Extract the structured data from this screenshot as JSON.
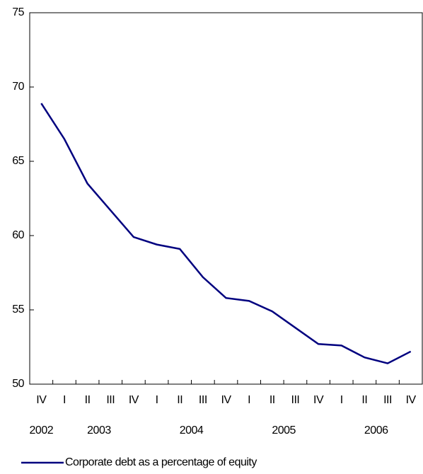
{
  "chart_data": {
    "type": "line",
    "categories": [
      "IV",
      "I",
      "II",
      "III",
      "IV",
      "I",
      "II",
      "III",
      "IV",
      "I",
      "II",
      "III",
      "IV",
      "I",
      "II",
      "III",
      "IV"
    ],
    "year_groups": [
      {
        "label": "2002",
        "start": 0,
        "end": 0
      },
      {
        "label": "2003",
        "start": 1,
        "end": 4
      },
      {
        "label": "2004",
        "start": 5,
        "end": 8
      },
      {
        "label": "2005",
        "start": 9,
        "end": 12
      },
      {
        "label": "2006",
        "start": 13,
        "end": 16
      }
    ],
    "series": [
      {
        "name": "Corporate debt as a percentage of equity",
        "color": "#00007f",
        "values": [
          68.9,
          66.5,
          63.5,
          61.7,
          59.9,
          59.4,
          59.1,
          57.2,
          55.8,
          55.6,
          54.9,
          53.8,
          52.7,
          52.6,
          51.8,
          51.4,
          52.2
        ]
      }
    ],
    "ylim": [
      50,
      75
    ],
    "yticks": [
      50,
      55,
      60,
      65,
      70,
      75
    ],
    "grid": false
  }
}
